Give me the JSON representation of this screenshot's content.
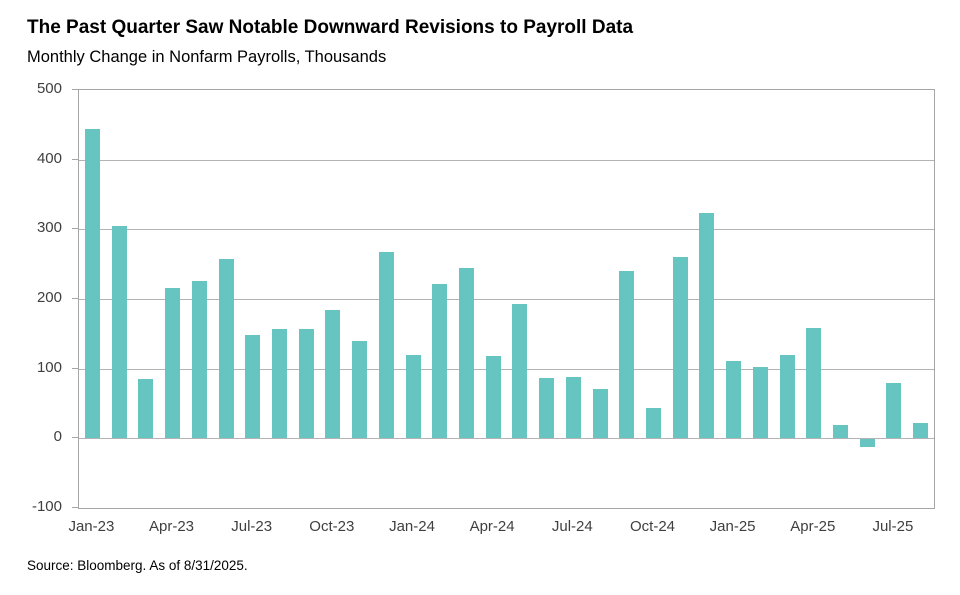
{
  "header": {
    "title": "The Past Quarter Saw Notable Downward Revisions to Payroll Data",
    "subtitle": "Monthly Change in Nonfarm Payrolls, Thousands"
  },
  "footer": {
    "source": "Source: Bloomberg. As of 8/31/2025."
  },
  "colors": {
    "bar": "#67c5c1",
    "gridline": "#b3b3b3",
    "plot_border": "#a6a6a6",
    "axis_text": "#3f3f3f"
  },
  "chart_data": {
    "type": "bar",
    "title": "The Past Quarter Saw Notable Downward Revisions to Payroll Data",
    "subtitle": "Monthly Change in Nonfarm Payrolls, Thousands",
    "xlabel": "",
    "ylabel": "",
    "ylim": [
      -100,
      500
    ],
    "ytick_interval": 100,
    "ytick_labels": [
      "500",
      "400",
      "300",
      "200",
      "100",
      "0",
      "-100"
    ],
    "grid": true,
    "legend_position": "none",
    "categories": [
      "Jan-23",
      "Feb-23",
      "Mar-23",
      "Apr-23",
      "May-23",
      "Jun-23",
      "Jul-23",
      "Aug-23",
      "Sep-23",
      "Oct-23",
      "Nov-23",
      "Dec-23",
      "Jan-24",
      "Feb-24",
      "Mar-24",
      "Apr-24",
      "May-24",
      "Jun-24",
      "Jul-24",
      "Aug-24",
      "Sep-24",
      "Oct-24",
      "Nov-24",
      "Dec-24",
      "Jan-25",
      "Feb-25",
      "Mar-25",
      "Apr-25",
      "May-25",
      "Jun-25",
      "Jul-25",
      "Aug-25"
    ],
    "values": [
      444,
      305,
      85,
      216,
      226,
      257,
      148,
      157,
      157,
      185,
      140,
      268,
      119,
      222,
      245,
      118,
      193,
      86,
      88,
      71,
      240,
      44,
      261,
      323,
      111,
      102,
      120,
      158,
      19,
      -13,
      79,
      22
    ],
    "xtick_labels": [
      "Jan-23",
      "Apr-23",
      "Jul-23",
      "Oct-23",
      "Jan-24",
      "Apr-24",
      "Jul-24",
      "Oct-24",
      "Jan-25",
      "Apr-25",
      "Jul-25"
    ],
    "xtick_every": 3
  }
}
